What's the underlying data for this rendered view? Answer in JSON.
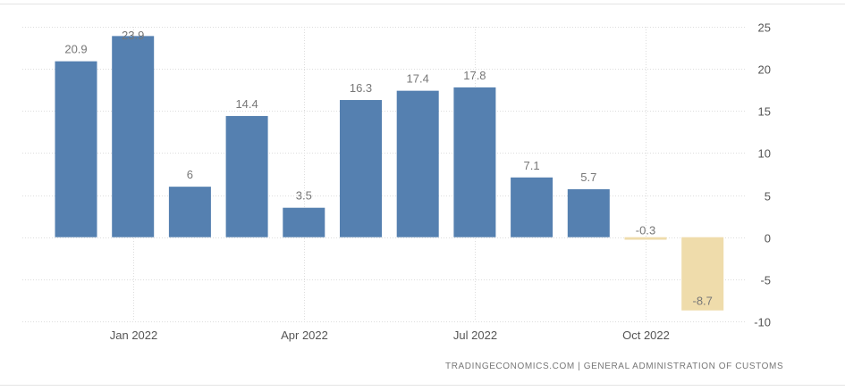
{
  "chart_data": {
    "type": "bar",
    "categories": [
      "Dec 2021",
      "Jan 2022",
      "Feb 2022",
      "Mar 2022",
      "Apr 2022",
      "May 2022",
      "Jun 2022",
      "Jul 2022",
      "Aug 2022",
      "Sep 2022",
      "Oct 2022",
      "Nov 2022"
    ],
    "values": [
      20.9,
      23.9,
      6,
      14.4,
      3.5,
      16.3,
      17.4,
      17.8,
      7.1,
      5.7,
      -0.3,
      -8.7
    ],
    "data_labels": [
      "20.9",
      "23.9",
      "6",
      "14.4",
      "3.5",
      "16.3",
      "17.4",
      "17.8",
      "7.1",
      "5.7",
      "-0.3",
      "-8.7"
    ],
    "x_tick_labels": [
      {
        "label": "Jan 2022",
        "category": "Jan 2022"
      },
      {
        "label": "Apr 2022",
        "category": "Apr 2022"
      },
      {
        "label": "Jul 2022",
        "category": "Jul 2022"
      },
      {
        "label": "Oct 2022",
        "category": "Oct 2022"
      }
    ],
    "y_ticks": [
      25,
      20,
      15,
      10,
      5,
      0,
      -5,
      -10
    ],
    "ylim": [
      -10,
      25
    ],
    "y_axis_side": "right",
    "grid": true,
    "title": "",
    "xlabel": "",
    "ylabel": "",
    "colors": {
      "positive": "#5580b0",
      "negative": "#efdcab",
      "grid": "#dddddd",
      "text": "#555555"
    }
  },
  "source_text": "TRADINGECONOMICS.COM  |  GENERAL ADMINISTRATION OF CUSTOMS"
}
